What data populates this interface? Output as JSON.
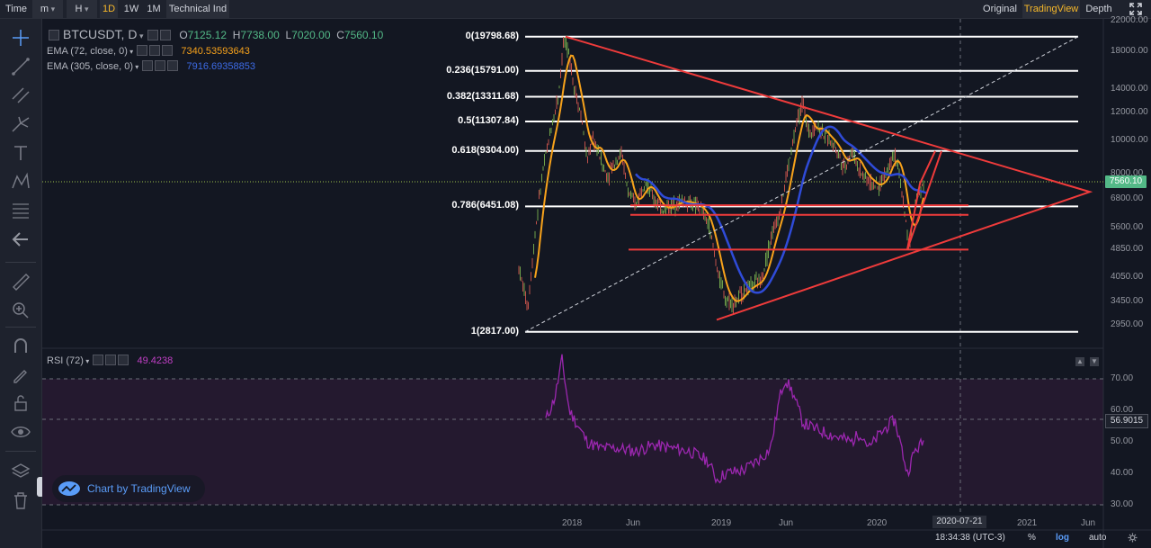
{
  "toolbar": {
    "time_label": "Time",
    "minute_label": "m",
    "hour_label": "H",
    "intervals": [
      "1D",
      "1W",
      "1M"
    ],
    "active_interval": "1D",
    "indicators_label": "Technical Ind",
    "view_modes": [
      "Original",
      "TradingView",
      "Depth"
    ],
    "active_view": "TradingView"
  },
  "legend": {
    "symbol": "BTCUSDT, D",
    "open_label": "O",
    "open": "7125.12",
    "high_label": "H",
    "high": "7738.00",
    "low_label": "L",
    "low": "7020.00",
    "close_label": "C",
    "close": "7560.10",
    "ema_fast_label": "EMA (72, close, 0)",
    "ema_fast_value": "7340.53593643",
    "ema_slow_label": "EMA (305, close, 0)",
    "ema_slow_value": "7916.69358853",
    "rsi_label": "RSI (72)",
    "rsi_value": "49.4238"
  },
  "fib_levels": [
    {
      "label": "0(19798.68)",
      "price": 19798.68
    },
    {
      "label": "0.236(15791.00)",
      "price": 15791.0
    },
    {
      "label": "0.382(13311.68)",
      "price": 13311.68
    },
    {
      "label": "0.5(11307.84)",
      "price": 11307.84
    },
    {
      "label": "0.618(9304.00)",
      "price": 9304.0
    },
    {
      "label": "0.786(6451.08)",
      "price": 6451.08
    },
    {
      "label": "1(2817.00)",
      "price": 2817.0
    }
  ],
  "price_axis_labels": [
    "22000.00",
    "18000.00",
    "14000.00",
    "12000.00",
    "10000.00",
    "8000.00",
    "6800.00",
    "5600.00",
    "4850.00",
    "4050.00",
    "3450.00",
    "2950.00"
  ],
  "last_price": "7560.10",
  "rsi_axis_labels": [
    "70.00",
    "60.00",
    "50.00",
    "40.00",
    "30.00"
  ],
  "rsi_marker": "56.9015",
  "time_axis_labels": [
    "2018",
    "Jun",
    "2019",
    "Jun",
    "2020",
    "2020-07-21",
    "2021",
    "Jun"
  ],
  "crosshair_date": "2020-07-21",
  "watermark_text": "Chart by TradingView",
  "bottom_bar": {
    "clock": "18:34:38 (UTC-3)",
    "percent_label": "%",
    "log_label": "log",
    "auto_label": "auto"
  },
  "colors": {
    "background": "#131722",
    "fib_lines": "#ffffff",
    "triangle": "#ef3b3b",
    "ema_fast": "#f7a21b",
    "ema_slow": "#2f4bd8",
    "rsi_line": "#9c27b0",
    "rsi_band": "#2a1b37",
    "last_price": "#53b987",
    "active_toolbar": "#f7b82a"
  }
}
